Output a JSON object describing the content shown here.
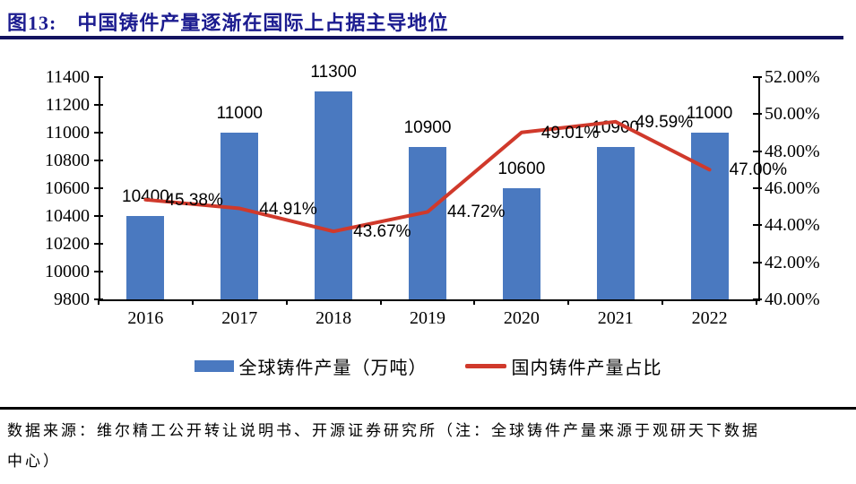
{
  "title": "图13:　中国铸件产量逐渐在国际上占据主导地位",
  "chart_data": {
    "type": "bar",
    "subtype": "bar+line dual-axis",
    "categories": [
      "2016",
      "2017",
      "2018",
      "2019",
      "2020",
      "2021",
      "2022"
    ],
    "series": [
      {
        "name": "全球铸件产量（万吨）",
        "type": "bar",
        "axis": "left",
        "color": "#4a79c0",
        "values": [
          10400,
          11000,
          11300,
          10900,
          10600,
          10900,
          11000
        ],
        "labels": [
          "10400",
          "11000",
          "11300",
          "10900",
          "10600",
          "10900",
          "11000"
        ]
      },
      {
        "name": "国内铸件产量占比",
        "type": "line",
        "axis": "right",
        "color": "#d0392b",
        "values": [
          45.38,
          44.91,
          43.67,
          44.72,
          49.01,
          49.59,
          47.0
        ],
        "labels": [
          "45.38%",
          "44.91%",
          "43.67%",
          "44.72%",
          "49.01%",
          "49.59%",
          "47.00%"
        ]
      }
    ],
    "left_axis": {
      "min": 9800,
      "max": 11400,
      "step": 200,
      "tick_labels": [
        "11400",
        "11200",
        "11000",
        "10800",
        "10600",
        "10400",
        "10200",
        "10000",
        "9800"
      ]
    },
    "right_axis": {
      "min": 40,
      "max": 52,
      "step": 2,
      "tick_labels": [
        "52.00%",
        "50.00%",
        "48.00%",
        "46.00%",
        "44.00%",
        "42.00%",
        "40.00%"
      ]
    },
    "grid": false,
    "legend_position": "bottom"
  },
  "legend": {
    "bar_label": "全球铸件产量（万吨）",
    "line_label": "国内铸件产量占比"
  },
  "footer": {
    "source_line1": "数据来源：维尔精工公开转让说明书、开源证券研究所（注：全球铸件产量来源于观研天下数据",
    "source_line2": "中心）"
  },
  "colors": {
    "bar": "#4a79c0",
    "line": "#d0392b",
    "title": "#1c1c90"
  }
}
